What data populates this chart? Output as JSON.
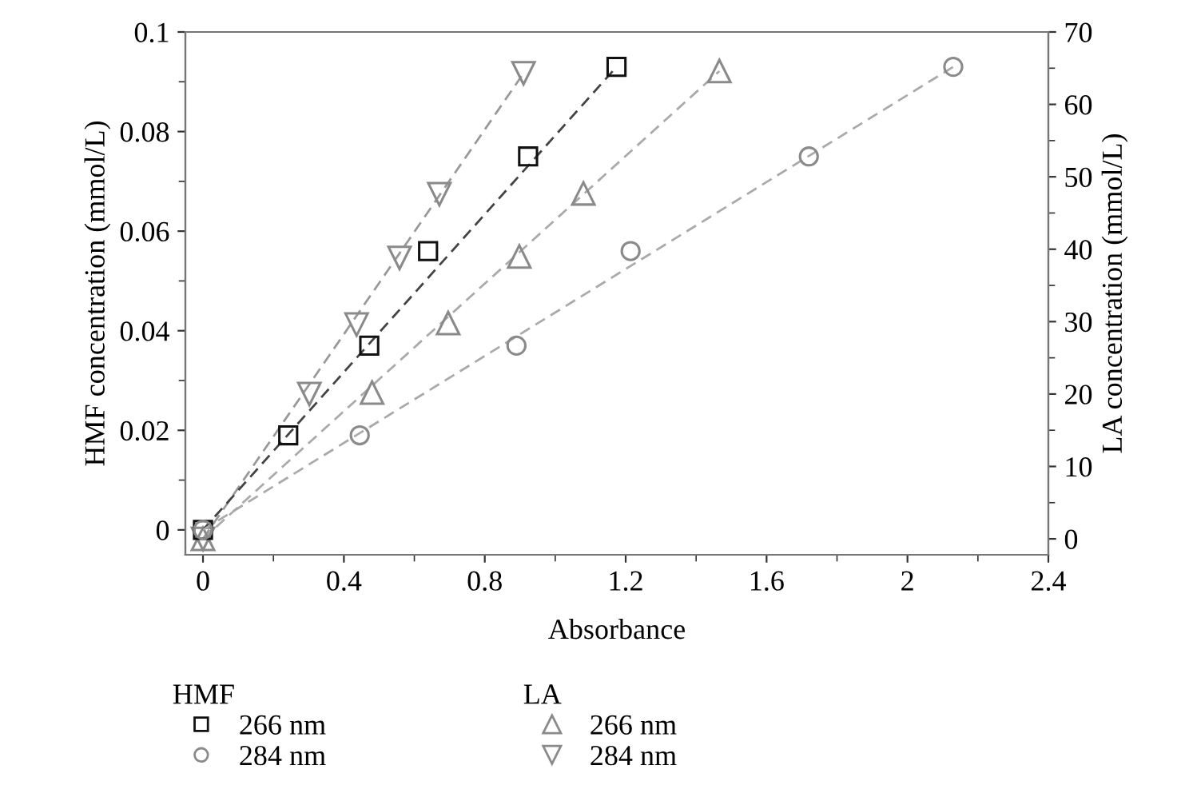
{
  "chart_data": {
    "type": "scatter",
    "xlabel": "Absorbance",
    "ylabel": "HMF concentration (mmol/L)",
    "y2label": "LA concentration (mmol/L)",
    "legend_title": [
      "HMF",
      "LA"
    ],
    "legend": "bottom",
    "grid": false,
    "line_style": "dashed",
    "xlim": [
      -0.05,
      2.4
    ],
    "xticks": [
      0,
      0.4,
      0.8,
      1.2,
      1.6,
      2,
      2.4
    ],
    "ylim": [
      -0.005,
      0.1
    ],
    "yticks": [
      0,
      0.02,
      0.04,
      0.06,
      0.08,
      0.1
    ],
    "y2lim": [
      -2.2,
      70
    ],
    "y2ticks": [
      0,
      10,
      20,
      30,
      40,
      50,
      60,
      70
    ],
    "series": [
      {
        "name": "266 nm",
        "marker": "square",
        "color": "#111111",
        "axis": "y",
        "x": [
          0,
          0.242,
          0.472,
          0.639,
          0.923,
          1.174
        ],
        "values": [
          0,
          0.019,
          0.037,
          0.056,
          0.075,
          0.093
        ]
      },
      {
        "name": "284 nm",
        "marker": "circle",
        "color": "#8a8a8a",
        "axis": "y",
        "x": [
          0,
          0.445,
          0.89,
          1.214,
          1.72,
          2.13
        ],
        "values": [
          0,
          0.019,
          0.037,
          0.056,
          0.075,
          0.093
        ]
      },
      {
        "name": "266 nm",
        "marker": "triangle",
        "color": "#8a8a8a",
        "axis": "y2",
        "x": [
          0,
          0.48,
          0.696,
          0.898,
          1.08,
          1.466
        ],
        "values": [
          0,
          20.2,
          29.8,
          39,
          47.7,
          64.6
        ]
      },
      {
        "name": "284 nm",
        "marker": "triangle_down",
        "color": "#8a8a8a",
        "axis": "y2",
        "x": [
          0,
          0.302,
          0.436,
          0.558,
          0.671,
          0.91
        ],
        "values": [
          0,
          20,
          29.6,
          38.8,
          47.6,
          64.3
        ]
      },
      {
        "type": "line",
        "color": "#444444",
        "axis": "y",
        "x": [
          0,
          1.174
        ],
        "values": [
          0,
          0.093
        ]
      },
      {
        "type": "line",
        "color": "#aaaaaa",
        "axis": "y",
        "x": [
          0,
          2.13
        ],
        "values": [
          0,
          0.093
        ]
      },
      {
        "type": "line",
        "color": "#aaaaaa",
        "axis": "y2",
        "x": [
          0,
          1.466
        ],
        "values": [
          0,
          64.6
        ]
      },
      {
        "type": "line",
        "color": "#999999",
        "axis": "y2",
        "x": [
          0,
          0.91
        ],
        "values": [
          0,
          64.3
        ]
      }
    ]
  }
}
